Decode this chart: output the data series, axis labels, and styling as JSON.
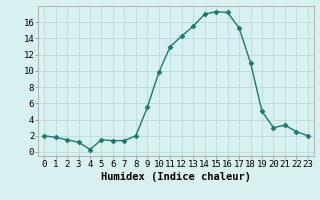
{
  "x": [
    0,
    1,
    2,
    3,
    4,
    5,
    6,
    7,
    8,
    9,
    10,
    11,
    12,
    13,
    14,
    15,
    16,
    17,
    18,
    19,
    20,
    21,
    22,
    23
  ],
  "y": [
    2,
    1.8,
    1.5,
    1.2,
    0.3,
    1.5,
    1.4,
    1.4,
    2,
    5.5,
    9.8,
    13,
    14.3,
    15.5,
    17,
    17.3,
    17.2,
    15.3,
    11,
    5,
    3,
    3.3,
    2.5,
    2
  ],
  "line_color": "#1a7a6e",
  "marker": "D",
  "marker_size": 2.5,
  "bg_color": "#d8f0f0",
  "grid_color": "#c0dede",
  "xlabel": "Humidex (Indice chaleur)",
  "ylim": [
    -0.5,
    18
  ],
  "xlim": [
    -0.5,
    23.5
  ],
  "yticks": [
    0,
    2,
    4,
    6,
    8,
    10,
    12,
    14,
    16
  ],
  "xticks": [
    0,
    1,
    2,
    3,
    4,
    5,
    6,
    7,
    8,
    9,
    10,
    11,
    12,
    13,
    14,
    15,
    16,
    17,
    18,
    19,
    20,
    21,
    22,
    23
  ],
  "tick_font_size": 6.5,
  "label_font_size": 7.5
}
